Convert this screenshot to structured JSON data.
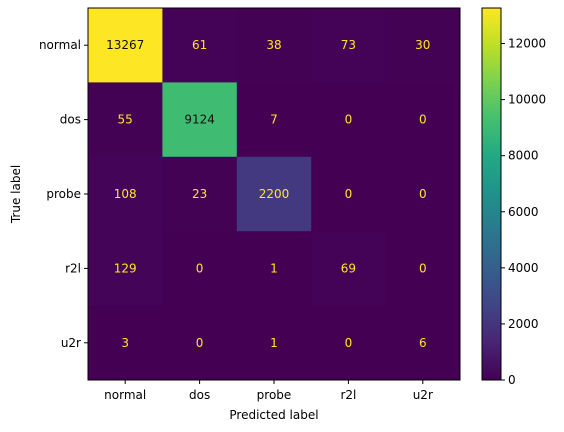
{
  "chart_data": {
    "type": "heatmap",
    "title": "",
    "xlabel": "Predicted label",
    "ylabel": "True label",
    "x_categories": [
      "normal",
      "dos",
      "probe",
      "r2l",
      "u2r"
    ],
    "y_categories": [
      "normal",
      "dos",
      "probe",
      "r2l",
      "u2r"
    ],
    "values": [
      [
        13267,
        61,
        38,
        73,
        30
      ],
      [
        55,
        9124,
        7,
        0,
        0
      ],
      [
        108,
        23,
        2200,
        0,
        0
      ],
      [
        129,
        0,
        1,
        69,
        0
      ],
      [
        3,
        0,
        1,
        0,
        6
      ]
    ],
    "colormap": "viridis",
    "colorbar_range": [
      0,
      13267
    ],
    "colorbar_ticks": [
      0,
      2000,
      4000,
      6000,
      8000,
      10000,
      12000
    ],
    "colorbar_tick_labels": [
      "0",
      "2000",
      "4000",
      "6000",
      "8000",
      "10000",
      "12000"
    ],
    "annotation_color_light": "#fde725",
    "annotation_color_dark": "#111111"
  }
}
